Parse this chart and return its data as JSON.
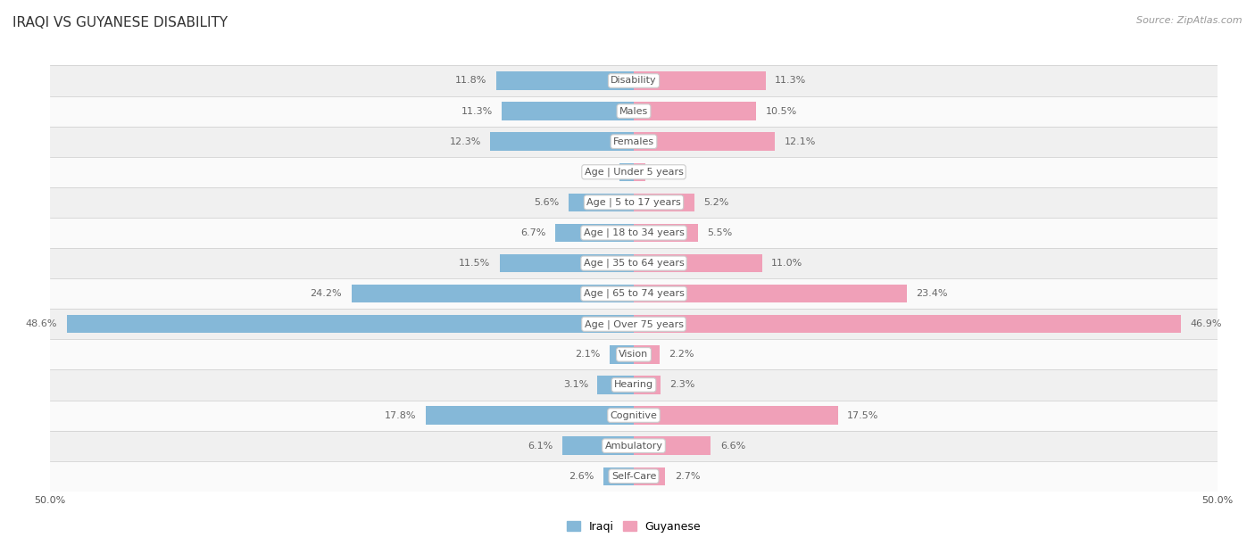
{
  "title": "IRAQI VS GUYANESE DISABILITY",
  "source": "Source: ZipAtlas.com",
  "categories": [
    "Disability",
    "Males",
    "Females",
    "Age | Under 5 years",
    "Age | 5 to 17 years",
    "Age | 18 to 34 years",
    "Age | 35 to 64 years",
    "Age | 65 to 74 years",
    "Age | Over 75 years",
    "Vision",
    "Hearing",
    "Cognitive",
    "Ambulatory",
    "Self-Care"
  ],
  "iraqi": [
    11.8,
    11.3,
    12.3,
    1.2,
    5.6,
    6.7,
    11.5,
    24.2,
    48.6,
    2.1,
    3.1,
    17.8,
    6.1,
    2.6
  ],
  "guyanese": [
    11.3,
    10.5,
    12.1,
    1.0,
    5.2,
    5.5,
    11.0,
    23.4,
    46.9,
    2.2,
    2.3,
    17.5,
    6.6,
    2.7
  ],
  "iraqi_color": "#85b8d8",
  "guyanese_color": "#f0a0b8",
  "xlim": 50.0,
  "legend_iraqi": "Iraqi",
  "legend_guyanese": "Guyanese",
  "row_bg_odd": "#f0f0f0",
  "row_bg_even": "#fafafa",
  "title_fontsize": 11,
  "source_fontsize": 8,
  "value_fontsize": 8,
  "category_fontsize": 8
}
